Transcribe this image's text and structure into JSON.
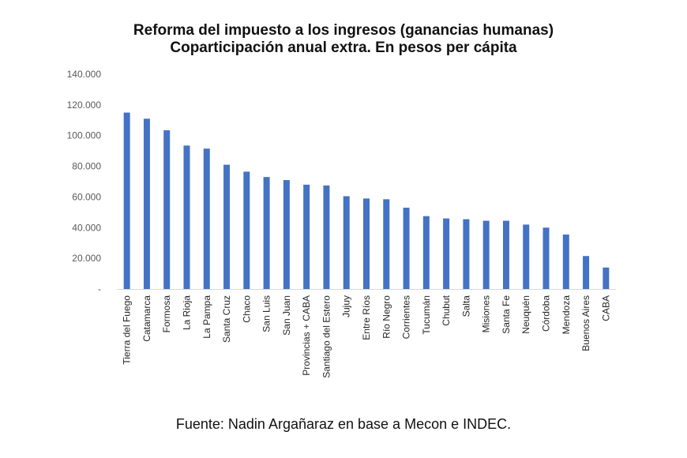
{
  "chart_data": {
    "type": "bar",
    "title": "Reforma del impuesto a los ingresos (ganancias humanas)",
    "subtitle": "Coparticipación anual extra. En pesos per cápita",
    "xlabel": "",
    "ylabel": "",
    "ylim": [
      0,
      140000
    ],
    "yticks": [
      0,
      20000,
      40000,
      60000,
      80000,
      100000,
      120000,
      140000
    ],
    "ytick_labels": [
      "-",
      "20.000",
      "40.000",
      "60.000",
      "80.000",
      "100.000",
      "120.000",
      "140.000"
    ],
    "grid": false,
    "bar_color": "#4472C4",
    "categories": [
      "Tierra del Fuego",
      "Catamarca",
      "Formosa",
      "La Rioja",
      "La Pampa",
      "Santa Cruz",
      "Chaco",
      "San Luis",
      "San Juan",
      "Provincias + CABA",
      "Santiago del Estero",
      "Jujuy",
      "Entre Ríos",
      "Río Negro",
      "Corrientes",
      "Tucumán",
      "Chubut",
      "Salta",
      "Misiones",
      "Santa Fe",
      "Neuquén",
      "Córdoba",
      "Mendoza",
      "Buenos Aires",
      "CABA"
    ],
    "values": [
      115000,
      111000,
      103500,
      93500,
      91500,
      81000,
      76500,
      73000,
      71000,
      68000,
      67500,
      60500,
      59000,
      58500,
      53000,
      47500,
      46000,
      45500,
      44500,
      44500,
      42000,
      40000,
      35500,
      21500,
      14000
    ]
  },
  "source": "Fuente: Nadin Argañaraz en base a Mecon e INDEC."
}
